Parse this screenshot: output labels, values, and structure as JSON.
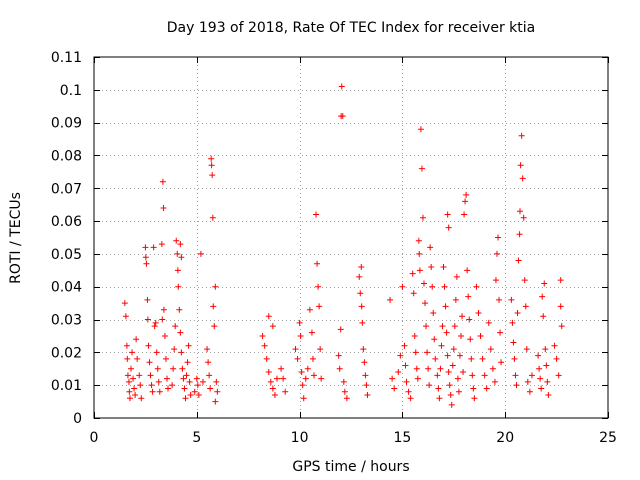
{
  "chart_data": {
    "type": "scatter",
    "title": "Day 193 of 2018, Rate Of TEC Index for receiver ktia",
    "xlabel": "GPS time / hours",
    "ylabel": "ROTI / TECUs",
    "xlim": [
      0,
      25
    ],
    "ylim": [
      0,
      0.11
    ],
    "xticks": [
      0,
      5,
      10,
      15,
      20,
      25
    ],
    "xtick_labels": [
      "0",
      "5",
      "10",
      "15",
      "20",
      "25"
    ],
    "yticks": [
      0,
      0.01,
      0.02,
      0.03,
      0.04,
      0.05,
      0.06,
      0.07,
      0.08,
      0.09,
      0.1,
      0.11
    ],
    "ytick_labels": [
      "0",
      "0.01",
      "0.02",
      "0.03",
      "0.04",
      "0.05",
      "0.06",
      "0.07",
      "0.08",
      "0.09",
      "0.1",
      "0.11"
    ],
    "grid": true,
    "marker": "+",
    "marker_color": "#ff0000",
    "series": [
      {
        "name": "ROTI",
        "points": [
          [
            1.5,
            0.035
          ],
          [
            1.55,
            0.031
          ],
          [
            1.6,
            0.022
          ],
          [
            1.62,
            0.018
          ],
          [
            1.65,
            0.013
          ],
          [
            1.7,
            0.011
          ],
          [
            1.72,
            0.008
          ],
          [
            1.75,
            0.006
          ],
          [
            1.8,
            0.015
          ],
          [
            1.85,
            0.02
          ],
          [
            1.9,
            0.012
          ],
          [
            1.95,
            0.009
          ],
          [
            2.0,
            0.007
          ],
          [
            2.05,
            0.024
          ],
          [
            2.1,
            0.018
          ],
          [
            2.2,
            0.013
          ],
          [
            2.25,
            0.01
          ],
          [
            2.3,
            0.006
          ],
          [
            2.5,
            0.052
          ],
          [
            2.52,
            0.049
          ],
          [
            2.55,
            0.047
          ],
          [
            2.6,
            0.036
          ],
          [
            2.62,
            0.03
          ],
          [
            2.65,
            0.022
          ],
          [
            2.7,
            0.017
          ],
          [
            2.75,
            0.013
          ],
          [
            2.8,
            0.01
          ],
          [
            2.85,
            0.008
          ],
          [
            2.9,
            0.052
          ],
          [
            2.95,
            0.028
          ],
          [
            3.0,
            0.029
          ],
          [
            3.05,
            0.02
          ],
          [
            3.1,
            0.015
          ],
          [
            3.15,
            0.011
          ],
          [
            3.2,
            0.008
          ],
          [
            3.3,
            0.053
          ],
          [
            3.32,
            0.03
          ],
          [
            3.35,
            0.072
          ],
          [
            3.38,
            0.064
          ],
          [
            3.4,
            0.033
          ],
          [
            3.45,
            0.025
          ],
          [
            3.5,
            0.018
          ],
          [
            3.55,
            0.012
          ],
          [
            3.6,
            0.009
          ],
          [
            3.8,
            0.01
          ],
          [
            3.85,
            0.015
          ],
          [
            3.9,
            0.021
          ],
          [
            3.95,
            0.028
          ],
          [
            4.0,
            0.054
          ],
          [
            4.05,
            0.05
          ],
          [
            4.08,
            0.045
          ],
          [
            4.1,
            0.04
          ],
          [
            4.15,
            0.033
          ],
          [
            4.2,
            0.026
          ],
          [
            4.25,
            0.02
          ],
          [
            4.3,
            0.015
          ],
          [
            4.35,
            0.012
          ],
          [
            4.4,
            0.009
          ],
          [
            4.45,
            0.006
          ],
          [
            4.5,
            0.013
          ],
          [
            4.55,
            0.017
          ],
          [
            4.6,
            0.022
          ],
          [
            4.65,
            0.011
          ],
          [
            4.7,
            0.007
          ],
          [
            4.2,
            0.053
          ],
          [
            4.25,
            0.049
          ],
          [
            4.9,
            0.008
          ],
          [
            5.0,
            0.012
          ],
          [
            5.05,
            0.01
          ],
          [
            5.1,
            0.007
          ],
          [
            5.2,
            0.05
          ],
          [
            5.3,
            0.011
          ],
          [
            5.5,
            0.021
          ],
          [
            5.55,
            0.017
          ],
          [
            5.6,
            0.013
          ],
          [
            5.65,
            0.009
          ],
          [
            5.7,
            0.079
          ],
          [
            5.72,
            0.077
          ],
          [
            5.75,
            0.074
          ],
          [
            5.78,
            0.061
          ],
          [
            5.8,
            0.034
          ],
          [
            5.85,
            0.028
          ],
          [
            5.9,
            0.04
          ],
          [
            5.95,
            0.011
          ],
          [
            6.0,
            0.008
          ],
          [
            5.9,
            0.005
          ],
          [
            8.2,
            0.025
          ],
          [
            8.3,
            0.022
          ],
          [
            8.4,
            0.018
          ],
          [
            8.5,
            0.014
          ],
          [
            8.6,
            0.011
          ],
          [
            8.7,
            0.009
          ],
          [
            8.8,
            0.007
          ],
          [
            8.9,
            0.012
          ],
          [
            8.5,
            0.031
          ],
          [
            8.7,
            0.028
          ],
          [
            9.1,
            0.015
          ],
          [
            9.2,
            0.012
          ],
          [
            9.3,
            0.008
          ],
          [
            9.8,
            0.021
          ],
          [
            9.9,
            0.018
          ],
          [
            10.0,
            0.029
          ],
          [
            10.05,
            0.025
          ],
          [
            10.1,
            0.014
          ],
          [
            10.15,
            0.01
          ],
          [
            10.2,
            0.006
          ],
          [
            10.3,
            0.012
          ],
          [
            10.4,
            0.015
          ],
          [
            10.5,
            0.033
          ],
          [
            10.6,
            0.026
          ],
          [
            10.65,
            0.018
          ],
          [
            10.7,
            0.013
          ],
          [
            10.8,
            0.062
          ],
          [
            10.85,
            0.047
          ],
          [
            10.9,
            0.04
          ],
          [
            10.95,
            0.034
          ],
          [
            11.0,
            0.021
          ],
          [
            11.05,
            0.012
          ],
          [
            11.9,
            0.019
          ],
          [
            11.95,
            0.015
          ],
          [
            12.0,
            0.027
          ],
          [
            12.02,
            0.092
          ],
          [
            12.05,
            0.101
          ],
          [
            12.1,
            0.092
          ],
          [
            12.15,
            0.011
          ],
          [
            12.2,
            0.008
          ],
          [
            12.3,
            0.006
          ],
          [
            12.9,
            0.043
          ],
          [
            12.95,
            0.038
          ],
          [
            13.0,
            0.046
          ],
          [
            13.02,
            0.034
          ],
          [
            13.05,
            0.029
          ],
          [
            13.1,
            0.021
          ],
          [
            13.15,
            0.017
          ],
          [
            13.2,
            0.013
          ],
          [
            13.25,
            0.01
          ],
          [
            13.3,
            0.007
          ],
          [
            14.4,
            0.036
          ],
          [
            14.5,
            0.012
          ],
          [
            14.6,
            0.009
          ],
          [
            14.8,
            0.014
          ],
          [
            14.9,
            0.019
          ],
          [
            15.0,
            0.04
          ],
          [
            15.1,
            0.022
          ],
          [
            15.15,
            0.016
          ],
          [
            15.2,
            0.011
          ],
          [
            15.3,
            0.008
          ],
          [
            15.4,
            0.006
          ],
          [
            15.5,
            0.044
          ],
          [
            15.55,
            0.038
          ],
          [
            15.6,
            0.025
          ],
          [
            15.65,
            0.02
          ],
          [
            15.7,
            0.015
          ],
          [
            15.75,
            0.012
          ],
          [
            15.8,
            0.054
          ],
          [
            15.82,
            0.05
          ],
          [
            15.85,
            0.045
          ],
          [
            15.9,
            0.088
          ],
          [
            15.95,
            0.076
          ],
          [
            16.0,
            0.061
          ],
          [
            16.05,
            0.041
          ],
          [
            16.1,
            0.035
          ],
          [
            16.15,
            0.028
          ],
          [
            16.2,
            0.02
          ],
          [
            16.25,
            0.015
          ],
          [
            16.3,
            0.01
          ],
          [
            16.35,
            0.052
          ],
          [
            16.4,
            0.046
          ],
          [
            16.45,
            0.04
          ],
          [
            16.5,
            0.032
          ],
          [
            16.55,
            0.024
          ],
          [
            16.6,
            0.018
          ],
          [
            16.7,
            0.013
          ],
          [
            16.75,
            0.009
          ],
          [
            16.8,
            0.006
          ],
          [
            16.85,
            0.015
          ],
          [
            16.9,
            0.022
          ],
          [
            16.95,
            0.028
          ],
          [
            17.0,
            0.046
          ],
          [
            17.05,
            0.04
          ],
          [
            17.1,
            0.034
          ],
          [
            17.15,
            0.026
          ],
          [
            17.2,
            0.019
          ],
          [
            17.25,
            0.014
          ],
          [
            17.3,
            0.01
          ],
          [
            17.35,
            0.007
          ],
          [
            17.4,
            0.004
          ],
          [
            17.2,
            0.062
          ],
          [
            17.25,
            0.058
          ],
          [
            17.45,
            0.016
          ],
          [
            17.5,
            0.021
          ],
          [
            17.55,
            0.028
          ],
          [
            17.6,
            0.036
          ],
          [
            17.65,
            0.043
          ],
          [
            17.7,
            0.012
          ],
          [
            17.75,
            0.008
          ],
          [
            17.8,
            0.019
          ],
          [
            17.85,
            0.025
          ],
          [
            17.9,
            0.031
          ],
          [
            17.95,
            0.014
          ],
          [
            18.0,
            0.062
          ],
          [
            18.05,
            0.066
          ],
          [
            18.1,
            0.068
          ],
          [
            18.15,
            0.045
          ],
          [
            18.2,
            0.037
          ],
          [
            18.25,
            0.03
          ],
          [
            18.3,
            0.024
          ],
          [
            18.35,
            0.018
          ],
          [
            18.4,
            0.013
          ],
          [
            18.45,
            0.009
          ],
          [
            18.5,
            0.006
          ],
          [
            18.6,
            0.04
          ],
          [
            18.7,
            0.032
          ],
          [
            18.8,
            0.025
          ],
          [
            18.9,
            0.018
          ],
          [
            19.0,
            0.013
          ],
          [
            19.1,
            0.009
          ],
          [
            19.2,
            0.029
          ],
          [
            19.3,
            0.021
          ],
          [
            19.4,
            0.015
          ],
          [
            19.5,
            0.011
          ],
          [
            19.55,
            0.042
          ],
          [
            19.6,
            0.05
          ],
          [
            19.65,
            0.055
          ],
          [
            19.7,
            0.036
          ],
          [
            19.75,
            0.026
          ],
          [
            19.8,
            0.017
          ],
          [
            20.3,
            0.036
          ],
          [
            20.35,
            0.029
          ],
          [
            20.4,
            0.023
          ],
          [
            20.45,
            0.018
          ],
          [
            20.5,
            0.013
          ],
          [
            20.55,
            0.01
          ],
          [
            20.6,
            0.032
          ],
          [
            20.65,
            0.048
          ],
          [
            20.7,
            0.056
          ],
          [
            20.72,
            0.063
          ],
          [
            20.75,
            0.077
          ],
          [
            20.8,
            0.086
          ],
          [
            20.85,
            0.073
          ],
          [
            20.9,
            0.061
          ],
          [
            20.95,
            0.042
          ],
          [
            21.0,
            0.034
          ],
          [
            21.05,
            0.021
          ],
          [
            21.1,
            0.011
          ],
          [
            21.2,
            0.008
          ],
          [
            21.3,
            0.013
          ],
          [
            21.6,
            0.019
          ],
          [
            21.65,
            0.015
          ],
          [
            21.7,
            0.012
          ],
          [
            21.75,
            0.009
          ],
          [
            21.8,
            0.037
          ],
          [
            21.85,
            0.031
          ],
          [
            21.9,
            0.041
          ],
          [
            21.95,
            0.021
          ],
          [
            22.0,
            0.016
          ],
          [
            22.05,
            0.011
          ],
          [
            22.1,
            0.007
          ],
          [
            22.4,
            0.022
          ],
          [
            22.5,
            0.018
          ],
          [
            22.6,
            0.013
          ],
          [
            22.7,
            0.034
          ],
          [
            22.75,
            0.028
          ],
          [
            22.7,
            0.042
          ]
        ]
      }
    ]
  }
}
